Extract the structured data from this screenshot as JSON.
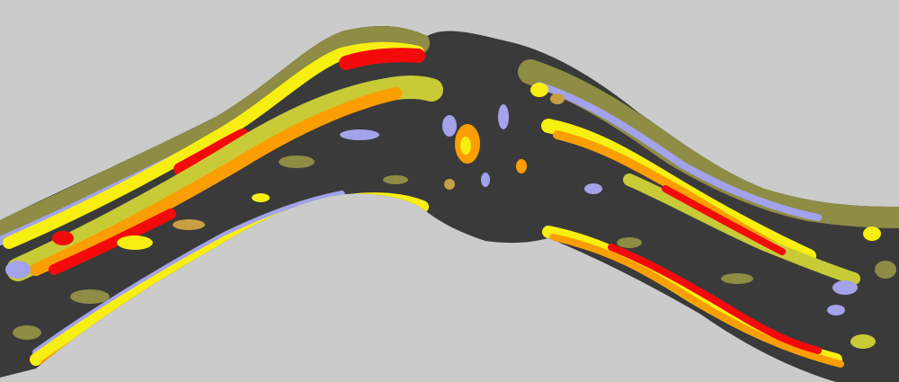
{
  "image": {
    "kind": "false-color cross-sectional scan of an arched layered band",
    "colors": {
      "background": "#cbcbcb",
      "tissue_dark": "#3a3a3a",
      "olive": "#8e8c45",
      "yellow_green": "#c8cb36",
      "lavender": "#a3a2ea",
      "yellow": "#f8ef12",
      "orange": "#fb9e03",
      "red": "#f40a0a",
      "tan": "#c79f42"
    }
  }
}
